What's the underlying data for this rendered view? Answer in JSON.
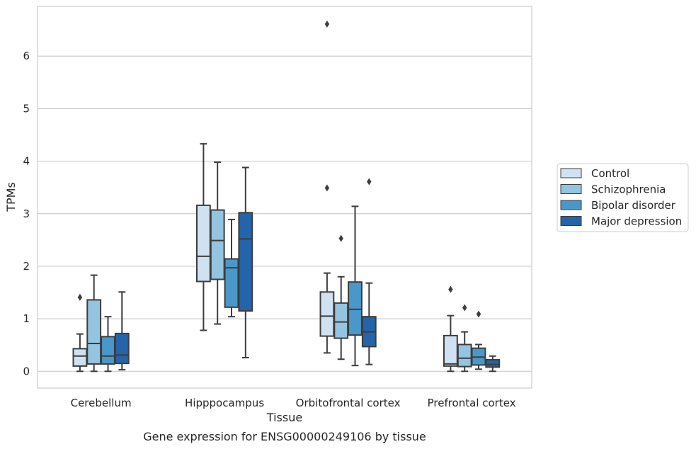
{
  "chart_data": {
    "type": "box",
    "caption": "Gene expression for ENSG00000249106 by tissue",
    "xlabel": "Tissue",
    "ylabel": "TPMs",
    "ylim": [
      -0.32,
      6.95
    ],
    "yticks": [
      0,
      1,
      2,
      3,
      4,
      5,
      6
    ],
    "grid": true,
    "legend_position": "right",
    "categories": [
      "Cerebellum",
      "Hipppocampus",
      "Orbitofrontal cortex",
      "Prefrontal cortex"
    ],
    "series": [
      {
        "name": "Control",
        "color": "#d0e1f2",
        "boxes": [
          {
            "whislo": 0.0,
            "q1": 0.1,
            "med": 0.29,
            "q3": 0.43,
            "whishi": 0.71,
            "fliers": [
              1.41
            ]
          },
          {
            "whislo": 0.78,
            "q1": 1.71,
            "med": 2.19,
            "q3": 3.16,
            "whishi": 4.33,
            "fliers": []
          },
          {
            "whislo": 0.35,
            "q1": 0.67,
            "med": 1.05,
            "q3": 1.51,
            "whishi": 1.87,
            "fliers": [
              3.49,
              6.61
            ]
          },
          {
            "whislo": 0.0,
            "q1": 0.1,
            "med": 0.14,
            "q3": 0.68,
            "whishi": 1.06,
            "fliers": [
              1.56
            ]
          }
        ]
      },
      {
        "name": "Schizophrenia",
        "color": "#94c4df",
        "boxes": [
          {
            "whislo": 0.0,
            "q1": 0.14,
            "med": 0.53,
            "q3": 1.36,
            "whishi": 1.83,
            "fliers": []
          },
          {
            "whislo": 0.9,
            "q1": 1.75,
            "med": 2.49,
            "q3": 3.07,
            "whishi": 3.98,
            "fliers": []
          },
          {
            "whislo": 0.23,
            "q1": 0.63,
            "med": 0.94,
            "q3": 1.3,
            "whishi": 1.8,
            "fliers": [
              2.53
            ]
          },
          {
            "whislo": 0.0,
            "q1": 0.09,
            "med": 0.25,
            "q3": 0.51,
            "whishi": 0.75,
            "fliers": [
              1.21
            ]
          }
        ]
      },
      {
        "name": "Bipolar disorder",
        "color": "#4a98c9",
        "boxes": [
          {
            "whislo": 0.0,
            "q1": 0.14,
            "med": 0.29,
            "q3": 0.66,
            "whishi": 1.04,
            "fliers": []
          },
          {
            "whislo": 1.04,
            "q1": 1.22,
            "med": 1.97,
            "q3": 2.14,
            "whishi": 2.89,
            "fliers": []
          },
          {
            "whislo": 0.11,
            "q1": 0.69,
            "med": 1.18,
            "q3": 1.7,
            "whishi": 3.14,
            "fliers": []
          },
          {
            "whislo": 0.04,
            "q1": 0.12,
            "med": 0.27,
            "q3": 0.44,
            "whishi": 0.51,
            "fliers": [
              1.09
            ]
          }
        ]
      },
      {
        "name": "Major depression",
        "color": "#2364aa",
        "boxes": [
          {
            "whislo": 0.03,
            "q1": 0.15,
            "med": 0.31,
            "q3": 0.72,
            "whishi": 1.51,
            "fliers": []
          },
          {
            "whislo": 0.26,
            "q1": 1.15,
            "med": 2.52,
            "q3": 3.02,
            "whishi": 3.88,
            "fliers": []
          },
          {
            "whislo": 0.13,
            "q1": 0.47,
            "med": 0.75,
            "q3": 1.04,
            "whishi": 1.68,
            "fliers": [
              3.61
            ]
          },
          {
            "whislo": 0.0,
            "q1": 0.08,
            "med": 0.13,
            "q3": 0.22,
            "whishi": 0.29,
            "fliers": []
          }
        ]
      }
    ]
  }
}
